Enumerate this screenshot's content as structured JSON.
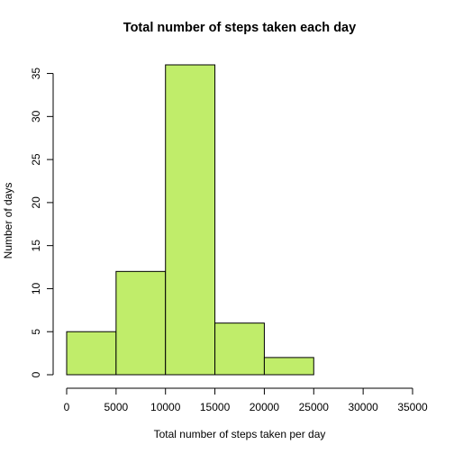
{
  "chart_data": {
    "type": "bar",
    "title": "Total number of steps taken each day",
    "xlabel": "Total number of steps taken per day",
    "ylabel": "Number of days",
    "bins": [
      {
        "start": 0,
        "end": 5000,
        "count": 5
      },
      {
        "start": 5000,
        "end": 10000,
        "count": 12
      },
      {
        "start": 10000,
        "end": 15000,
        "count": 36
      },
      {
        "start": 15000,
        "end": 20000,
        "count": 6
      },
      {
        "start": 20000,
        "end": 25000,
        "count": 2
      }
    ],
    "xlim": [
      0,
      35000
    ],
    "ylim": [
      0,
      36
    ],
    "x_ticks": [
      0,
      5000,
      10000,
      15000,
      20000,
      25000,
      30000,
      35000
    ],
    "y_ticks": [
      0,
      5,
      10,
      15,
      20,
      25,
      30,
      35
    ],
    "grid": false,
    "legend": "none",
    "bar_color": "#C0ED6A"
  }
}
